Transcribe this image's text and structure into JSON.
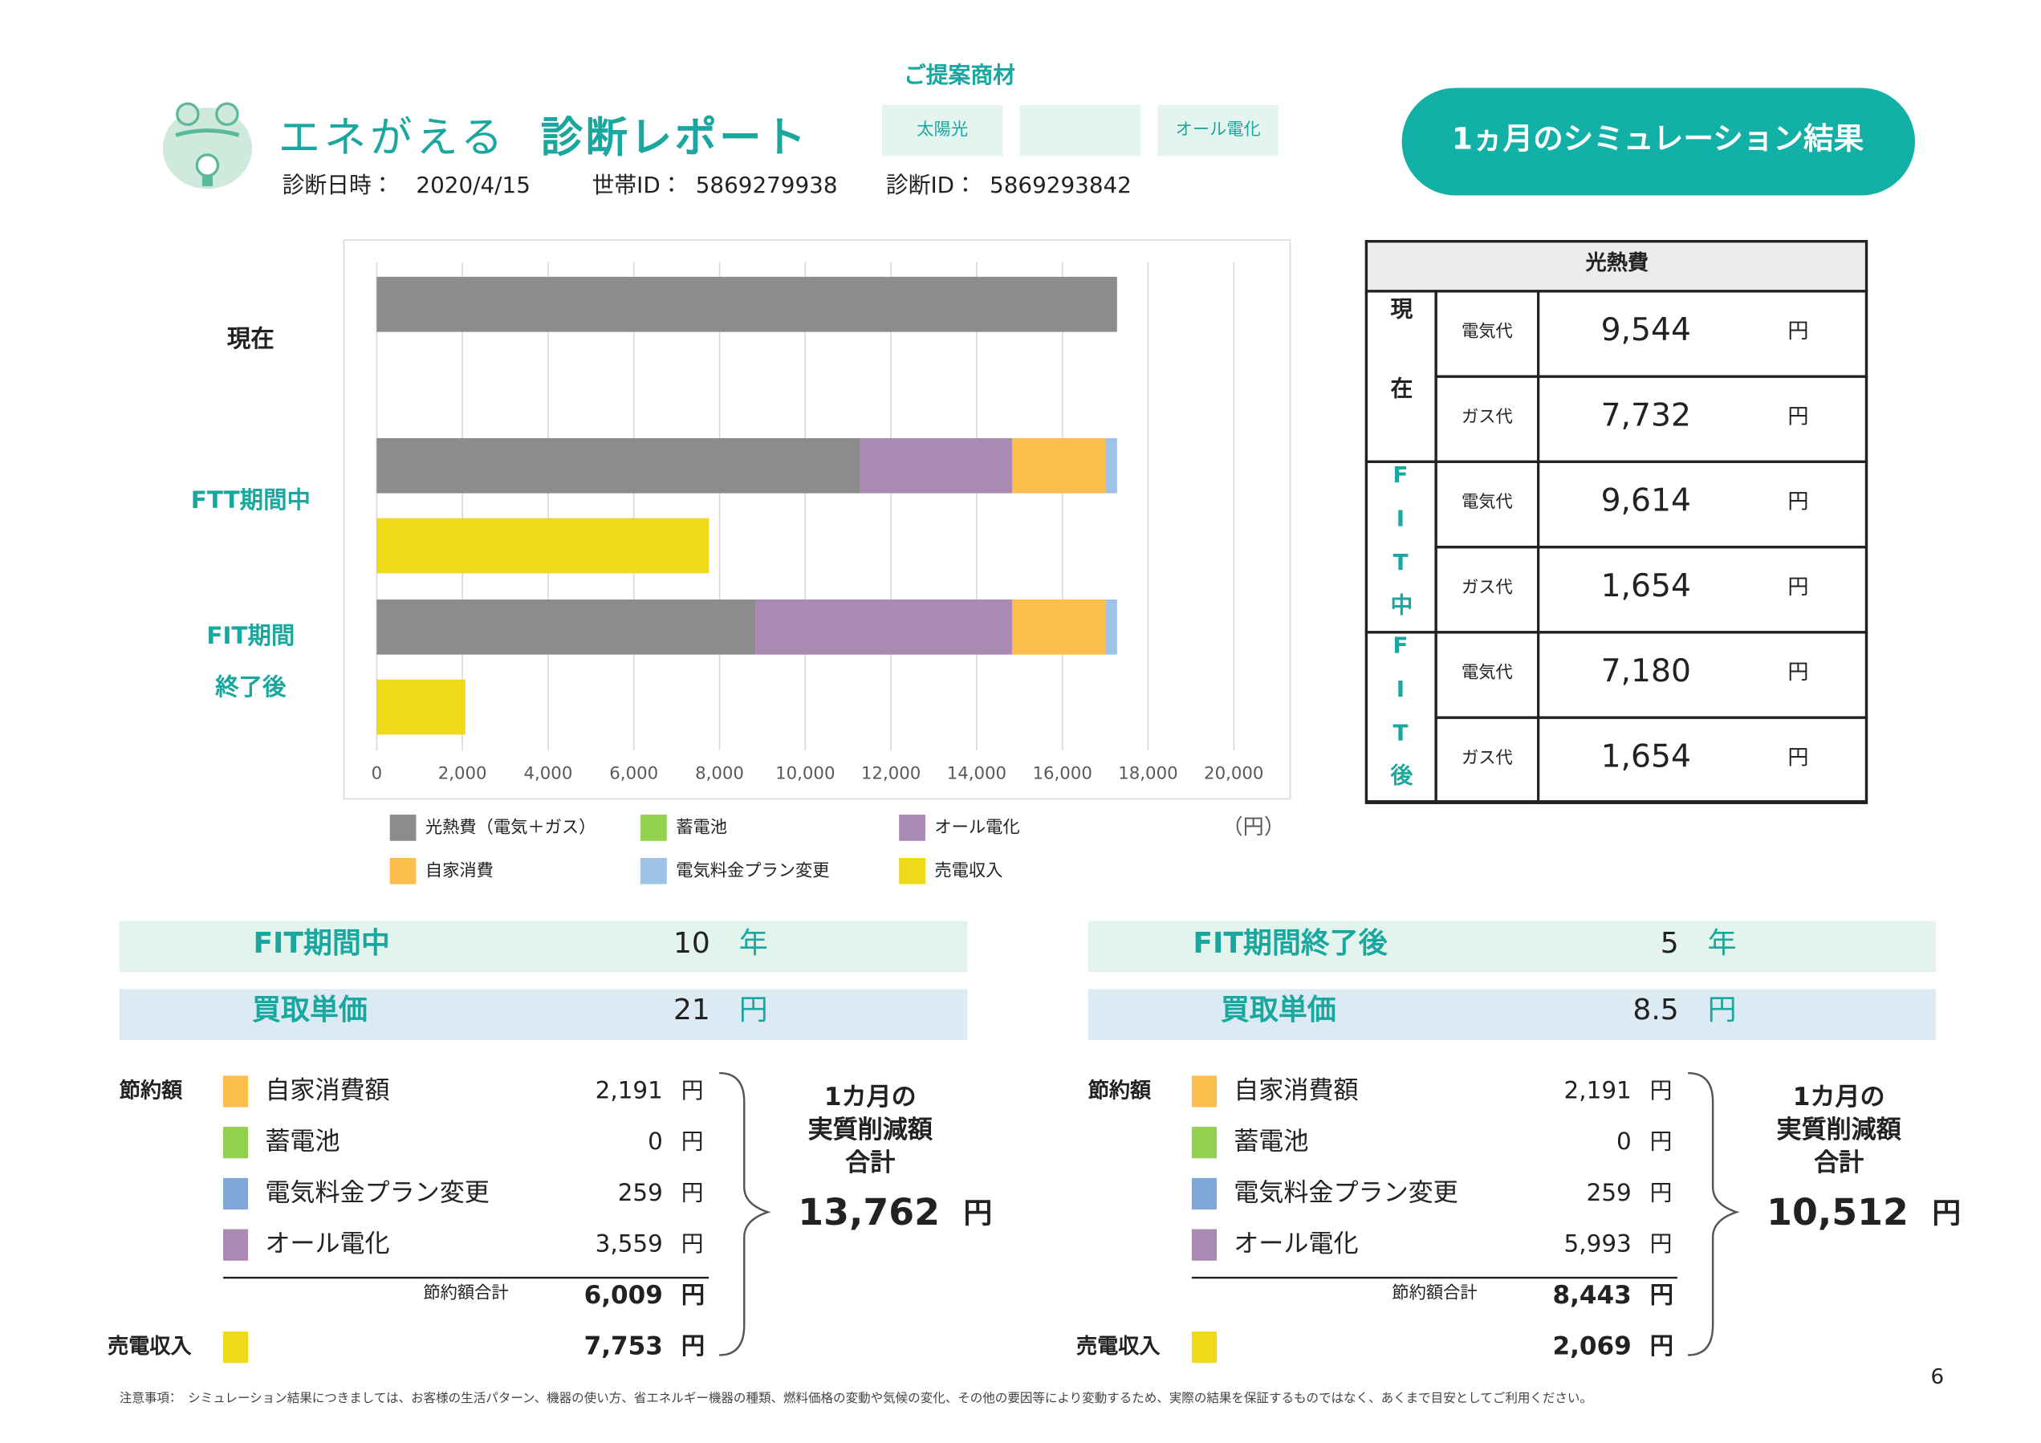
{
  "header": {
    "title_brand": "エネがえる",
    "title_report": "診断レポート",
    "date_label": "診断日時：",
    "date": "2020/4/15",
    "household_label": "世帯ID：",
    "household_id": "5869279938",
    "diagnosis_label": "診断ID：",
    "diagnosis_id": "5869293842"
  },
  "proposal": {
    "title": "ご提案商材",
    "items": [
      "太陽光",
      "オール電化"
    ]
  },
  "button": "1ヵ月のシミュレーション結果",
  "chart_data": {
    "type": "bar",
    "orientation": "horizontal",
    "stacked": true,
    "categories": [
      [
        "現在"
      ],
      [
        "FTT期間中"
      ],
      [
        "FIT期間",
        "終了後"
      ]
    ],
    "series": [
      {
        "name": "光熱費（電気＋ガス）",
        "color": "#8c8c8c",
        "values": [
          17276,
          11268,
          8834
        ]
      },
      {
        "name": "蓄電池",
        "color": "#92d050",
        "values": [
          null,
          0,
          0
        ]
      },
      {
        "name": "オール電化",
        "color": "#a98ab3",
        "values": [
          null,
          3559,
          5993
        ]
      },
      {
        "name": "自家消費",
        "color": "#fbbd4b",
        "values": [
          null,
          2191,
          2191
        ]
      },
      {
        "name": "電気料金プラン変更",
        "color": "#9dc3e6",
        "values": [
          null,
          259,
          259
        ]
      },
      {
        "name": "売電収入",
        "color": "#f0d918",
        "values": [
          null,
          7753,
          2069
        ],
        "stack": 1
      }
    ],
    "xlim": [
      0,
      20000
    ],
    "xticks": [
      0,
      {
        "value": 2000,
        "label": "2,000"
      },
      {
        "value": 4000,
        "label": "4,000"
      },
      {
        "value": 6000,
        "label": "6,000"
      },
      {
        "value": 8000,
        "label": "8,000"
      },
      {
        "value": 10000,
        "label": "10,000"
      },
      {
        "value": 12000,
        "label": "12,000"
      },
      {
        "value": 14000,
        "label": "14,000"
      },
      {
        "value": 16000,
        "label": "16,000"
      },
      {
        "value": 18000,
        "label": "18,000"
      },
      {
        "value": 20000,
        "label": "20,000"
      }
    ],
    "x_unit": "（円）",
    "grid": true
  },
  "table": {
    "header": "光熱費",
    "groups": [
      {
        "label": "現在",
        "color": "#222222",
        "rows": [
          {
            "item": "電気代",
            "value": "9,544",
            "unit": "円"
          },
          {
            "item": "ガス代",
            "value": "7,732",
            "unit": "円"
          }
        ]
      },
      {
        "label": "FIT中",
        "color": "#1aa79f",
        "rows": [
          {
            "item": "電気代",
            "value": "9,614",
            "unit": "円"
          },
          {
            "item": "ガス代",
            "value": "1,654",
            "unit": "円"
          }
        ]
      },
      {
        "label": "FIT後",
        "color": "#1aa79f",
        "rows": [
          {
            "item": "電気代",
            "value": "7,180",
            "unit": "円"
          },
          {
            "item": "ガス代",
            "value": "1,654",
            "unit": "円"
          }
        ]
      }
    ]
  },
  "panels": [
    {
      "period_label": "FIT期間中",
      "period_value": "10",
      "period_unit": "年",
      "price_label": "買取単価",
      "price_value": "21",
      "price_unit": "円",
      "savings_label": "節約額",
      "items": [
        {
          "name": "自家消費額",
          "value": "2,191",
          "unit": "円",
          "color": "#fbbd4b"
        },
        {
          "name": "蓄電池",
          "value": "0",
          "unit": "円",
          "color": "#92d050"
        },
        {
          "name": "電気料金プラン変更",
          "value": "259",
          "unit": "円",
          "color": "#7fa7d8"
        },
        {
          "name": "オール電化",
          "value": "3,559",
          "unit": "円",
          "color": "#a98ab3"
        }
      ],
      "subtotal_label": "節約額合計",
      "subtotal_value": "6,009",
      "subtotal_unit": "円",
      "sale_label": "売電収入",
      "sale_color": "#f0d918",
      "sale_value": "7,753",
      "sale_unit": "円",
      "result_label": [
        "1カ月の",
        "実質削減額",
        "合計"
      ],
      "result_value": "13,762",
      "result_unit": "円"
    },
    {
      "period_label": "FIT期間終了後",
      "period_value": "5",
      "period_unit": "年",
      "price_label": "買取単価",
      "price_value": "8.5",
      "price_unit": "円",
      "savings_label": "節約額",
      "items": [
        {
          "name": "自家消費額",
          "value": "2,191",
          "unit": "円",
          "color": "#fbbd4b"
        },
        {
          "name": "蓄電池",
          "value": "0",
          "unit": "円",
          "color": "#92d050"
        },
        {
          "name": "電気料金プラン変更",
          "value": "259",
          "unit": "円",
          "color": "#7fa7d8"
        },
        {
          "name": "オール電化",
          "value": "5,993",
          "unit": "円",
          "color": "#a98ab3"
        }
      ],
      "subtotal_label": "節約額合計",
      "subtotal_value": "8,443",
      "subtotal_unit": "円",
      "sale_label": "売電収入",
      "sale_color": "#f0d918",
      "sale_value": "2,069",
      "sale_unit": "円",
      "result_label": [
        "1カ月の",
        "実質削減額",
        "合計"
      ],
      "result_value": "10,512",
      "result_unit": "円"
    }
  ],
  "footnote": "注意事項：　シミュレーション結果につきましては、お客様の生活パターン、機器の使い方、省エネルギー機器の種類、燃料価格の変動や気候の変化、その他の要因等により変動するため、実際の結果を保証するものではなく、あくまで目安としてご利用ください。",
  "page_number": "6"
}
